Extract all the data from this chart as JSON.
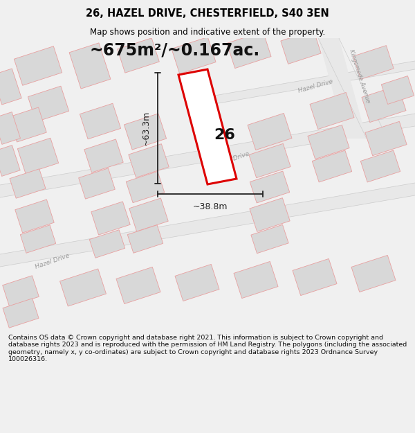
{
  "title": "26, HAZEL DRIVE, CHESTERFIELD, S40 3EN",
  "subtitle": "Map shows position and indicative extent of the property.",
  "area_text": "~675m²/~0.167ac.",
  "width_label": "~38.8m",
  "height_label": "~63.3m",
  "number_label": "26",
  "footer_text": "Contains OS data © Crown copyright and database right 2021. This information is subject to Crown copyright and database rights 2023 and is reproduced with the permission of HM Land Registry. The polygons (including the associated geometry, namely x, y co-ordinates) are subject to Crown copyright and database rights 2023 Ordnance Survey 100026316.",
  "bg_color": "#f0f0f0",
  "map_bg": "#ffffff",
  "road_color": "#e8a0a0",
  "building_fill": "#d8d8d8",
  "building_edge": "#e8a0a0",
  "property_edge": "#dd0000",
  "property_fill": "#ffffff",
  "dim_color": "#222222",
  "title_color": "#000000",
  "road_fill": "#e8e8e8",
  "road_edge": "#cccccc",
  "street_label_color": "#999999",
  "footer_text_color": "#111111"
}
